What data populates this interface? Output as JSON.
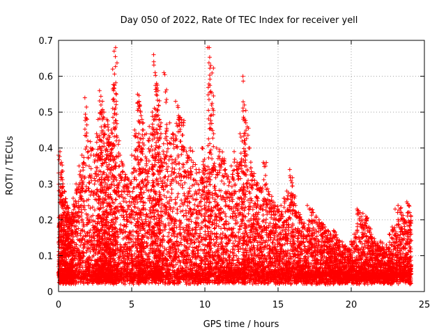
{
  "chart_data": {
    "type": "scatter",
    "title": "Day 050 of 2022, Rate Of TEC Index for receiver yell",
    "xlabel": "GPS time / hours",
    "ylabel": "ROTI / TECUs",
    "xlim": [
      0,
      25
    ],
    "ylim": [
      0,
      0.7
    ],
    "xticks": [
      "0",
      "5",
      "10",
      "15",
      "20",
      "25"
    ],
    "yticks": [
      "0",
      "0.1",
      "0.2",
      "0.3",
      "0.4",
      "0.5",
      "0.6",
      "0.7"
    ],
    "grid": true,
    "marker": "+",
    "series_color": "#ff0000",
    "series": [
      {
        "points_note_free": true,
        "x": [
          0.0,
          0.1,
          0.2,
          0.3,
          0.4,
          0.5,
          0.6,
          0.7,
          0.8,
          0.9,
          1.0,
          1.2,
          1.4,
          1.6,
          1.8,
          2.0,
          2.2,
          2.4,
          2.6,
          2.7,
          2.8,
          2.9,
          3.0,
          3.1,
          3.2,
          3.3,
          3.4,
          3.5,
          3.6,
          3.7,
          3.8,
          3.9,
          4.0,
          4.2,
          4.4,
          4.6,
          4.8,
          5.0,
          5.2,
          5.4,
          5.5,
          5.6,
          5.7,
          5.8,
          6.0,
          6.2,
          6.4,
          6.5,
          6.6,
          6.7,
          6.8,
          6.9,
          7.0,
          7.2,
          7.4,
          7.6,
          7.8,
          8.0,
          8.2,
          8.4,
          8.6,
          8.8,
          9.0,
          9.2,
          9.4,
          9.6,
          9.8,
          10.0,
          10.2,
          10.3,
          10.4,
          10.6,
          10.8,
          11.0,
          11.2,
          11.4,
          11.6,
          11.8,
          12.0,
          12.2,
          12.4,
          12.6,
          12.7,
          12.8,
          13.0,
          13.2,
          13.4,
          13.6,
          13.8,
          14.0,
          14.2,
          14.4,
          14.6,
          14.8,
          15.0,
          15.2,
          15.4,
          15.6,
          15.8,
          16.0,
          16.2,
          16.4,
          16.6,
          16.8,
          17.0,
          17.2,
          17.4,
          17.6,
          17.8,
          18.0,
          18.2,
          18.4,
          18.6,
          18.8,
          19.0,
          19.2,
          19.4,
          19.6,
          19.8,
          20.0,
          20.2,
          20.4,
          20.6,
          20.8,
          21.0,
          21.2,
          21.4,
          21.6,
          21.8,
          22.0,
          22.2,
          22.4,
          22.6,
          22.8,
          23.0,
          23.2,
          23.4,
          23.6,
          23.8,
          24.0
        ],
        "y": [
          0.38,
          0.39,
          0.36,
          0.3,
          0.28,
          0.25,
          0.24,
          0.22,
          0.21,
          0.22,
          0.26,
          0.3,
          0.35,
          0.38,
          0.54,
          0.42,
          0.4,
          0.38,
          0.44,
          0.48,
          0.56,
          0.52,
          0.53,
          0.5,
          0.46,
          0.48,
          0.45,
          0.43,
          0.45,
          0.62,
          0.67,
          0.68,
          0.43,
          0.38,
          0.35,
          0.32,
          0.31,
          0.38,
          0.45,
          0.55,
          0.53,
          0.5,
          0.48,
          0.45,
          0.44,
          0.46,
          0.5,
          0.66,
          0.61,
          0.58,
          0.56,
          0.48,
          0.44,
          0.61,
          0.45,
          0.47,
          0.44,
          0.53,
          0.49,
          0.48,
          0.4,
          0.38,
          0.4,
          0.36,
          0.34,
          0.34,
          0.4,
          0.35,
          0.68,
          0.68,
          0.63,
          0.44,
          0.4,
          0.39,
          0.37,
          0.34,
          0.32,
          0.35,
          0.39,
          0.36,
          0.44,
          0.6,
          0.52,
          0.47,
          0.4,
          0.33,
          0.31,
          0.3,
          0.29,
          0.36,
          0.3,
          0.27,
          0.25,
          0.24,
          0.23,
          0.24,
          0.26,
          0.28,
          0.34,
          0.27,
          0.24,
          0.22,
          0.2,
          0.19,
          0.24,
          0.23,
          0.22,
          0.21,
          0.2,
          0.19,
          0.18,
          0.17,
          0.16,
          0.17,
          0.15,
          0.14,
          0.13,
          0.12,
          0.12,
          0.14,
          0.16,
          0.23,
          0.22,
          0.2,
          0.21,
          0.18,
          0.15,
          0.14,
          0.13,
          0.14,
          0.12,
          0.13,
          0.16,
          0.18,
          0.23,
          0.24,
          0.22,
          0.2,
          0.25,
          0.22
        ]
      }
    ]
  }
}
